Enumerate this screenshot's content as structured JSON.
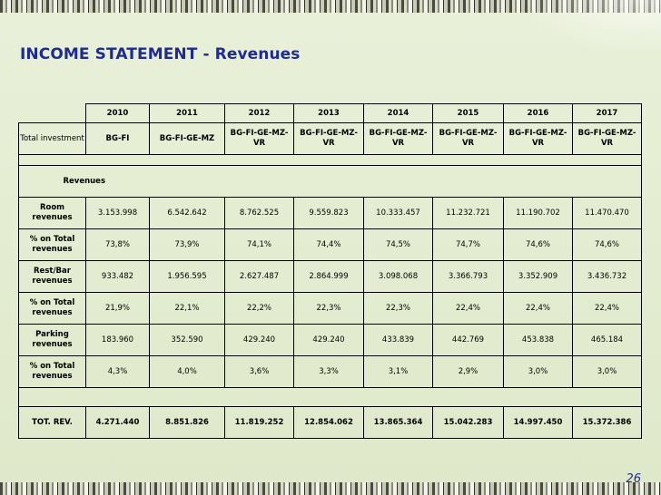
{
  "page": {
    "title": "INCOME STATEMENT - Revenues",
    "number": "26"
  },
  "table": {
    "years": [
      "2010",
      "2011",
      "2012",
      "2013",
      "2014",
      "2015",
      "2016",
      "2017"
    ],
    "investment_label": "Total investment",
    "investments": [
      "BG-FI",
      "BG-FI-GE-MZ",
      "BG-FI-GE-MZ-VR",
      "BG-FI-GE-MZ-VR",
      "BG-FI-GE-MZ-VR",
      "BG-FI-GE-MZ-VR",
      "BG-FI-GE-MZ-VR",
      "BG-FI-GE-MZ-VR"
    ],
    "section_label": "Revenues",
    "rows": [
      {
        "label": "Room revenues",
        "values": [
          "3.153.998",
          "6.542.642",
          "8.762.525",
          "9.559.823",
          "10.333.457",
          "11.232.721",
          "11.190.702",
          "11.470.470"
        ]
      },
      {
        "label": "% on Total revenues",
        "values": [
          "73,8%",
          "73,9%",
          "74,1%",
          "74,4%",
          "74,5%",
          "74,7%",
          "74,6%",
          "74,6%"
        ]
      },
      {
        "label": "Rest/Bar revenues",
        "values": [
          "933.482",
          "1.956.595",
          "2.627.487",
          "2.864.999",
          "3.098.068",
          "3.366.793",
          "3.352.909",
          "3.436.732"
        ]
      },
      {
        "label": "% on Total revenues",
        "values": [
          "21,9%",
          "22,1%",
          "22,2%",
          "22,3%",
          "22,3%",
          "22,4%",
          "22,4%",
          "22,4%"
        ]
      },
      {
        "label": "Parking revenues",
        "values": [
          "183.960",
          "352.590",
          "429.240",
          "429.240",
          "433.839",
          "442.769",
          "453.838",
          "465.184"
        ]
      },
      {
        "label": "% on Total revenues",
        "values": [
          "4,3%",
          "4,0%",
          "3,6%",
          "3,3%",
          "3,1%",
          "2,9%",
          "3,0%",
          "3,0%"
        ]
      }
    ],
    "total": {
      "label": "TOT. REV.",
      "values": [
        "4.271.440",
        "8.851.826",
        "11.819.252",
        "12.854.062",
        "13.865.364",
        "15.042.283",
        "14.997.450",
        "15.372.386"
      ]
    }
  }
}
